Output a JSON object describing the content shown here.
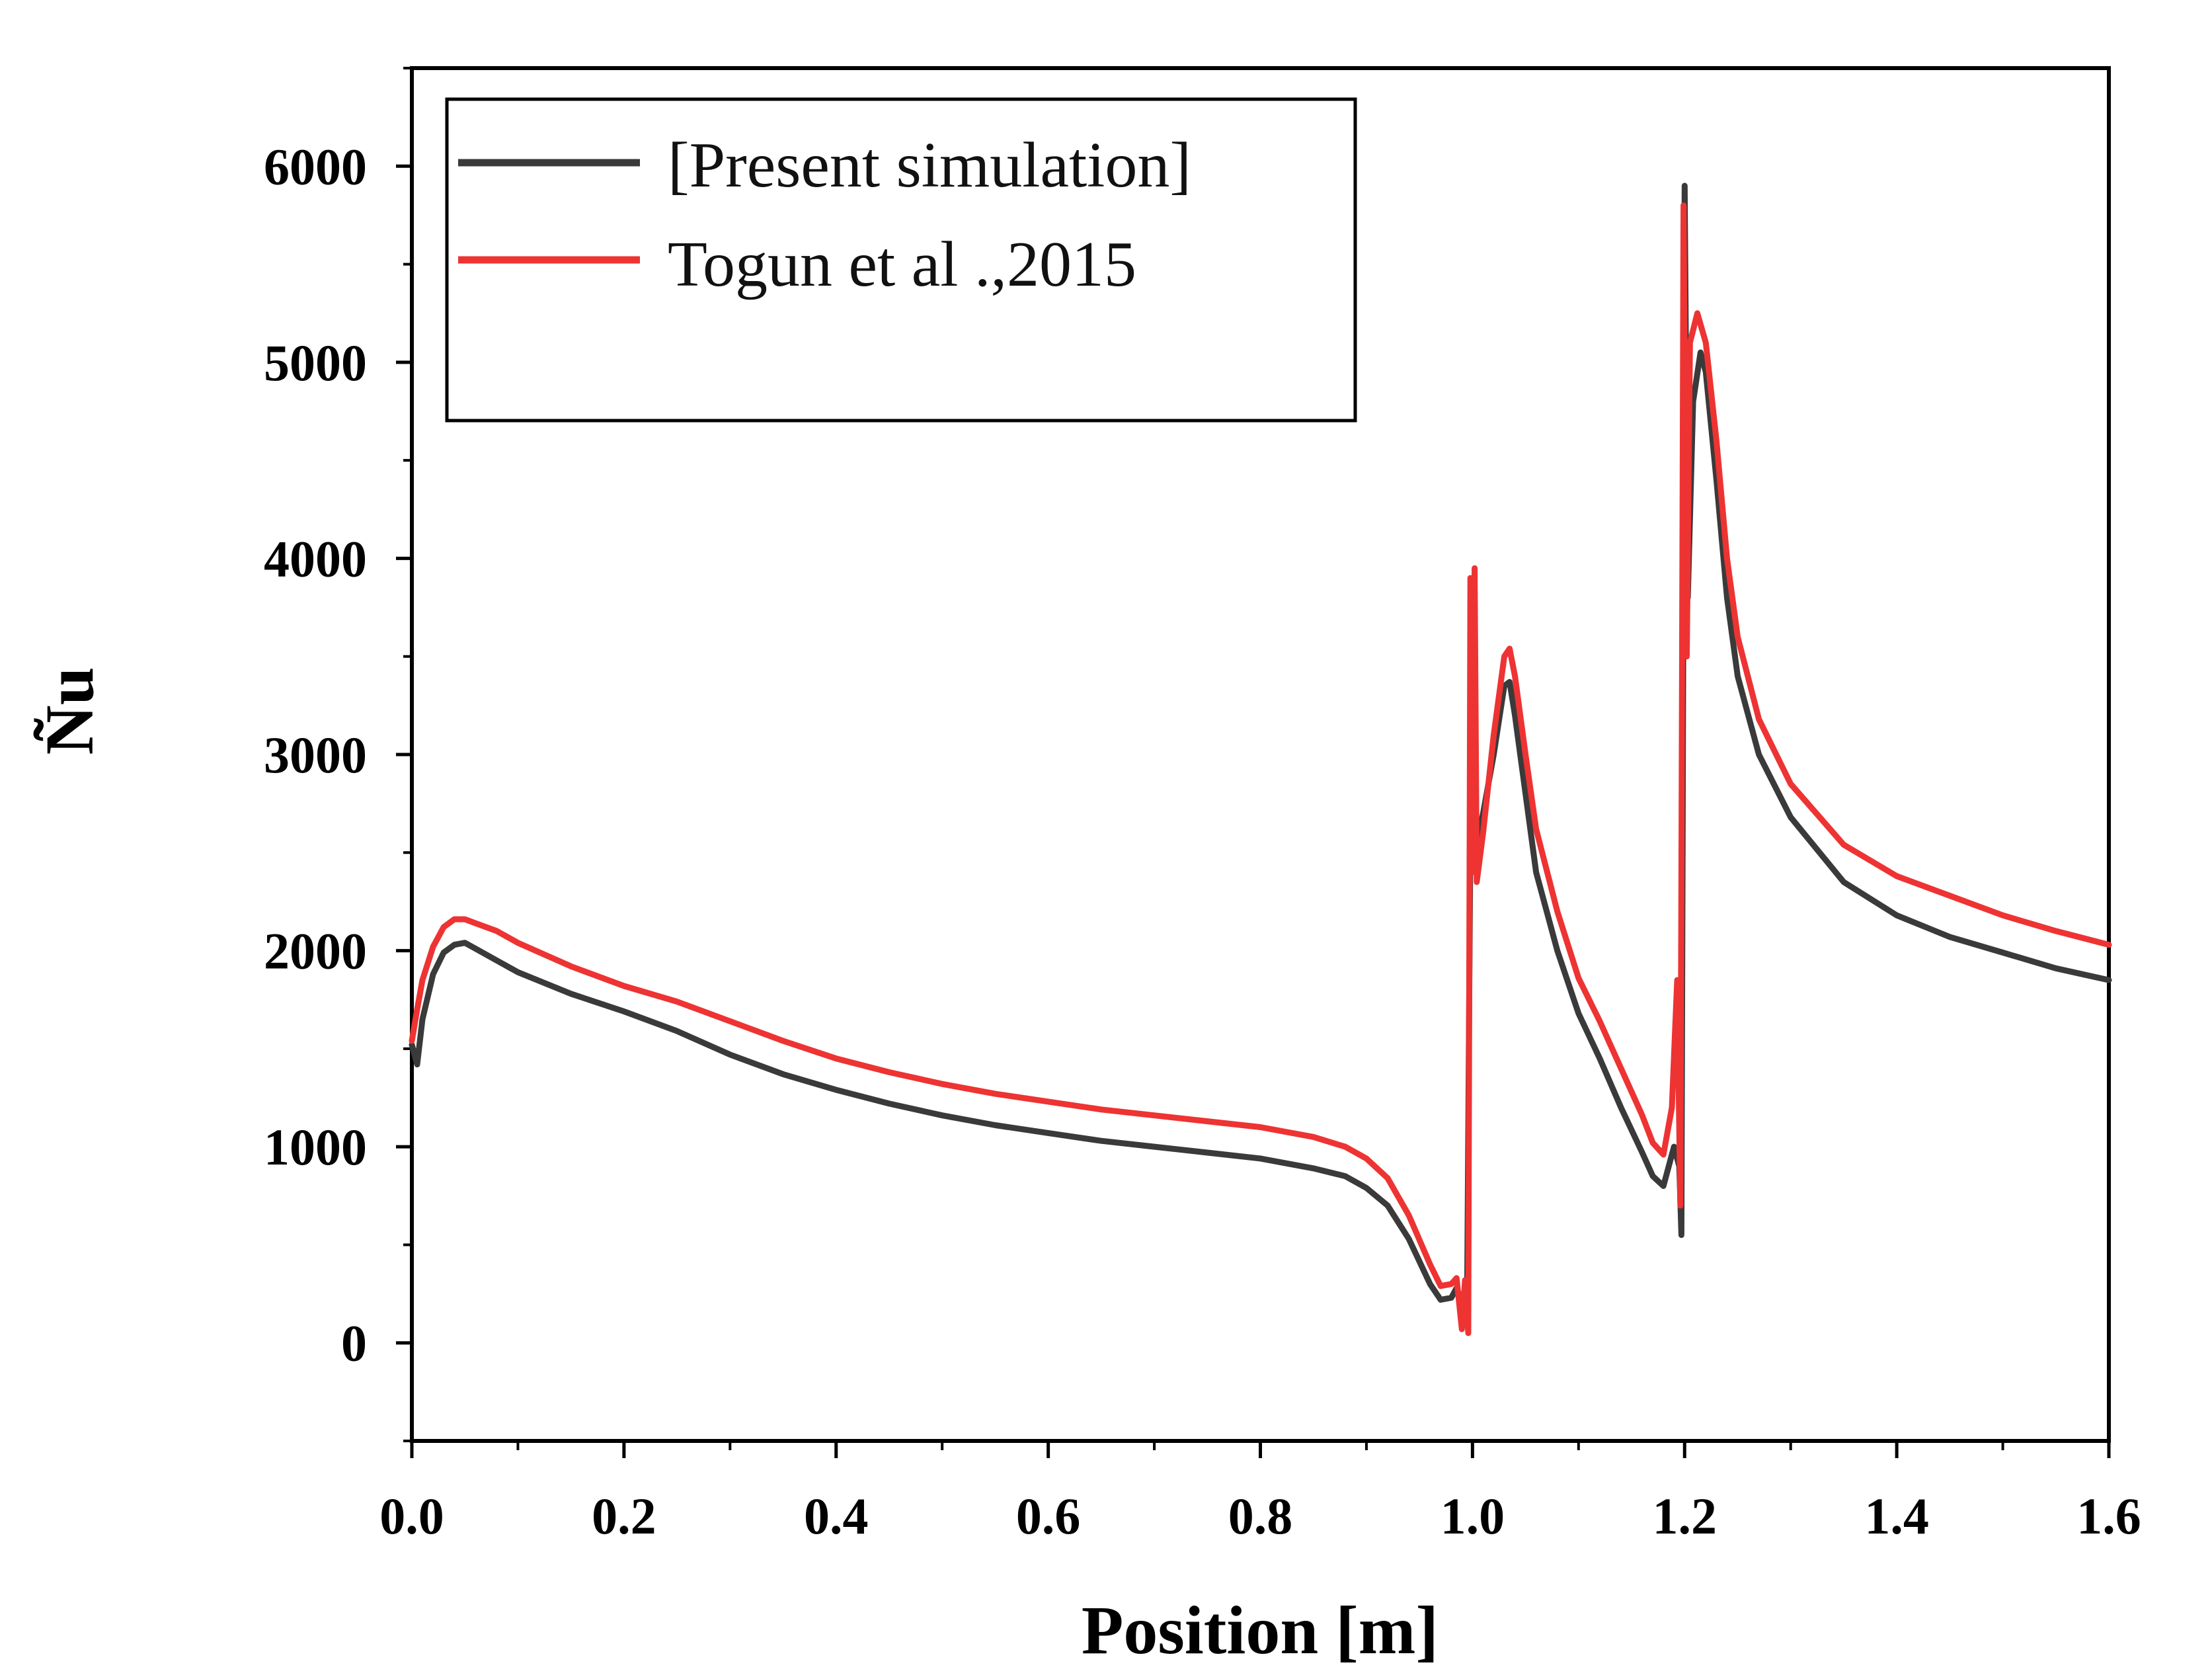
{
  "chart_data": {
    "type": "line",
    "title": "",
    "xlabel": "Position [m]",
    "ylabel": "Ñu",
    "xlim": [
      0.0,
      1.6
    ],
    "ylim": [
      -500,
      6500
    ],
    "x_ticks": [
      "0.0",
      "0.2",
      "0.4",
      "0.6",
      "0.8",
      "1.0",
      "1.2",
      "1.4",
      "1.6"
    ],
    "y_ticks": [
      "0",
      "1000",
      "2000",
      "3000",
      "4000",
      "5000",
      "6000"
    ],
    "grid": false,
    "legend": "top-left",
    "series": [
      {
        "name": "[Present simulation]",
        "color": "#3a3a3a",
        "points": [
          [
            0.0,
            1520
          ],
          [
            0.005,
            1420
          ],
          [
            0.01,
            1650
          ],
          [
            0.02,
            1880
          ],
          [
            0.03,
            1990
          ],
          [
            0.04,
            2030
          ],
          [
            0.05,
            2040
          ],
          [
            0.06,
            2010
          ],
          [
            0.08,
            1950
          ],
          [
            0.1,
            1890
          ],
          [
            0.15,
            1780
          ],
          [
            0.2,
            1690
          ],
          [
            0.25,
            1590
          ],
          [
            0.3,
            1470
          ],
          [
            0.35,
            1370
          ],
          [
            0.4,
            1290
          ],
          [
            0.45,
            1220
          ],
          [
            0.5,
            1160
          ],
          [
            0.55,
            1110
          ],
          [
            0.6,
            1070
          ],
          [
            0.65,
            1030
          ],
          [
            0.7,
            1000
          ],
          [
            0.75,
            970
          ],
          [
            0.8,
            940
          ],
          [
            0.85,
            890
          ],
          [
            0.88,
            850
          ],
          [
            0.9,
            790
          ],
          [
            0.92,
            700
          ],
          [
            0.94,
            530
          ],
          [
            0.96,
            300
          ],
          [
            0.97,
            220
          ],
          [
            0.98,
            230
          ],
          [
            0.985,
            280
          ],
          [
            0.99,
            210
          ],
          [
            0.995,
            300
          ],
          [
            0.998,
            2600
          ],
          [
            1.0,
            3800
          ],
          [
            1.002,
            2500
          ],
          [
            1.01,
            2700
          ],
          [
            1.02,
            3000
          ],
          [
            1.03,
            3350
          ],
          [
            1.035,
            3370
          ],
          [
            1.04,
            3200
          ],
          [
            1.05,
            2800
          ],
          [
            1.06,
            2400
          ],
          [
            1.08,
            2000
          ],
          [
            1.1,
            1680
          ],
          [
            1.12,
            1450
          ],
          [
            1.14,
            1200
          ],
          [
            1.16,
            970
          ],
          [
            1.17,
            850
          ],
          [
            1.18,
            800
          ],
          [
            1.19,
            1000
          ],
          [
            1.195,
            900
          ],
          [
            1.197,
            550
          ],
          [
            1.2,
            5900
          ],
          [
            1.203,
            3800
          ],
          [
            1.208,
            4800
          ],
          [
            1.215,
            5050
          ],
          [
            1.22,
            4950
          ],
          [
            1.23,
            4400
          ],
          [
            1.24,
            3800
          ],
          [
            1.25,
            3400
          ],
          [
            1.27,
            3000
          ],
          [
            1.3,
            2680
          ],
          [
            1.35,
            2350
          ],
          [
            1.4,
            2180
          ],
          [
            1.45,
            2070
          ],
          [
            1.5,
            1990
          ],
          [
            1.55,
            1910
          ],
          [
            1.6,
            1850
          ]
        ]
      },
      {
        "name": "Togun et al .,2015",
        "color": "#ee3333",
        "points": [
          [
            0.0,
            1540
          ],
          [
            0.005,
            1700
          ],
          [
            0.01,
            1850
          ],
          [
            0.02,
            2020
          ],
          [
            0.03,
            2120
          ],
          [
            0.04,
            2160
          ],
          [
            0.05,
            2160
          ],
          [
            0.06,
            2140
          ],
          [
            0.08,
            2100
          ],
          [
            0.1,
            2040
          ],
          [
            0.15,
            1920
          ],
          [
            0.2,
            1820
          ],
          [
            0.25,
            1740
          ],
          [
            0.3,
            1640
          ],
          [
            0.35,
            1540
          ],
          [
            0.4,
            1450
          ],
          [
            0.45,
            1380
          ],
          [
            0.5,
            1320
          ],
          [
            0.55,
            1270
          ],
          [
            0.6,
            1230
          ],
          [
            0.65,
            1190
          ],
          [
            0.7,
            1160
          ],
          [
            0.75,
            1130
          ],
          [
            0.8,
            1100
          ],
          [
            0.85,
            1050
          ],
          [
            0.88,
            1000
          ],
          [
            0.9,
            940
          ],
          [
            0.92,
            840
          ],
          [
            0.94,
            650
          ],
          [
            0.96,
            400
          ],
          [
            0.97,
            290
          ],
          [
            0.98,
            300
          ],
          [
            0.985,
            330
          ],
          [
            0.99,
            70
          ],
          [
            0.993,
            320
          ],
          [
            0.996,
            50
          ],
          [
            0.998,
            3900
          ],
          [
            1.0,
            2400
          ],
          [
            1.002,
            3950
          ],
          [
            1.004,
            2350
          ],
          [
            1.01,
            2600
          ],
          [
            1.02,
            3100
          ],
          [
            1.03,
            3500
          ],
          [
            1.035,
            3540
          ],
          [
            1.04,
            3400
          ],
          [
            1.05,
            3000
          ],
          [
            1.06,
            2620
          ],
          [
            1.08,
            2200
          ],
          [
            1.1,
            1860
          ],
          [
            1.12,
            1640
          ],
          [
            1.14,
            1400
          ],
          [
            1.16,
            1160
          ],
          [
            1.17,
            1020
          ],
          [
            1.18,
            960
          ],
          [
            1.188,
            1200
          ],
          [
            1.193,
            1850
          ],
          [
            1.196,
            700
          ],
          [
            1.199,
            5800
          ],
          [
            1.202,
            3500
          ],
          [
            1.205,
            5100
          ],
          [
            1.212,
            5250
          ],
          [
            1.22,
            5100
          ],
          [
            1.23,
            4600
          ],
          [
            1.24,
            4000
          ],
          [
            1.25,
            3600
          ],
          [
            1.27,
            3180
          ],
          [
            1.3,
            2850
          ],
          [
            1.35,
            2540
          ],
          [
            1.4,
            2380
          ],
          [
            1.45,
            2280
          ],
          [
            1.5,
            2180
          ],
          [
            1.55,
            2100
          ],
          [
            1.6,
            2030
          ]
        ]
      }
    ]
  }
}
